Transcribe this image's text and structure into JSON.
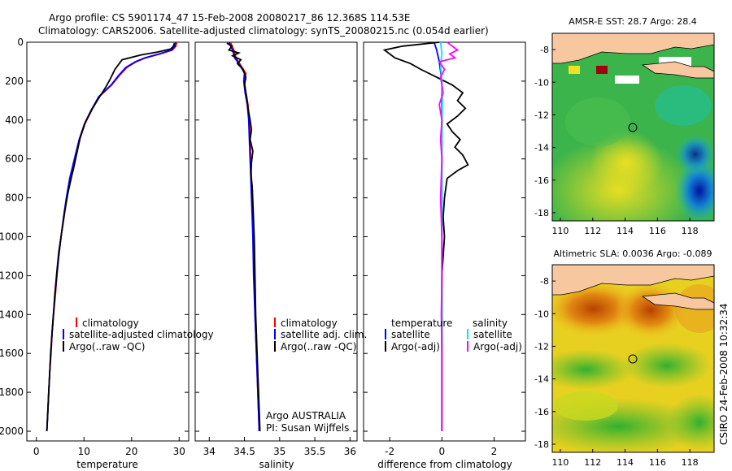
{
  "header": {
    "title_line1": "Argo profile: CS 5901174_47 15-Feb-2008 20080217_86 12.368S 114.53E",
    "title_line2": "Climatology: CARS2006. Satellite-adjusted climatology: synTS_20080215.nc (0.054d earlier)"
  },
  "credit": "CSIRO 24-Feb-2008 10:32:34",
  "colors": {
    "climatology": "#ff0000",
    "satellite": "#0000ff",
    "argo": "#000000",
    "salinity_satellite": "#00e5ff",
    "salinity_argo": "#ff00ff",
    "land": "#f7c7a0"
  },
  "chart_data": [
    {
      "id": "temperature",
      "type": "line",
      "xlabel": "temperature",
      "xlim": [
        -2,
        32
      ],
      "xticks": [
        0,
        10,
        20,
        30
      ],
      "ylim": [
        0,
        2050
      ],
      "yticks": [
        0,
        200,
        400,
        600,
        800,
        1000,
        1200,
        1400,
        1600,
        1800,
        2000
      ],
      "legend": [
        "climatology",
        "satellite-adjusted climatology",
        "Argo(..raw -QC)"
      ],
      "series": [
        {
          "name": "climatology",
          "color": "#ff0000",
          "points": [
            [
              29.5,
              0
            ],
            [
              29.3,
              20
            ],
            [
              28.6,
              40
            ],
            [
              26,
              60
            ],
            [
              23,
              80
            ],
            [
              21,
              100
            ],
            [
              19,
              130
            ],
            [
              17.5,
              170
            ],
            [
              15.8,
              220
            ],
            [
              13.2,
              280
            ],
            [
              11.6,
              350
            ],
            [
              10.2,
              420
            ],
            [
              9.1,
              500
            ],
            [
              8.1,
              600
            ],
            [
              7.1,
              700
            ],
            [
              6.4,
              800
            ],
            [
              5.8,
              900
            ],
            [
              5.2,
              1000
            ],
            [
              4.7,
              1100
            ],
            [
              4.3,
              1200
            ],
            [
              4.0,
              1300
            ],
            [
              3.6,
              1400
            ],
            [
              3.3,
              1500
            ],
            [
              3.1,
              1600
            ],
            [
              2.8,
              1700
            ],
            [
              2.6,
              1800
            ],
            [
              2.4,
              1900
            ],
            [
              2.2,
              2000
            ]
          ]
        },
        {
          "name": "satellite-adjusted climatology",
          "color": "#0000ff",
          "points": [
            [
              29.2,
              0
            ],
            [
              29.1,
              20
            ],
            [
              28.4,
              40
            ],
            [
              25.8,
              60
            ],
            [
              22.8,
              80
            ],
            [
              20.8,
              100
            ],
            [
              18.8,
              130
            ],
            [
              17.3,
              170
            ],
            [
              15.7,
              220
            ],
            [
              13.1,
              280
            ],
            [
              11.5,
              350
            ],
            [
              10.1,
              420
            ],
            [
              9.0,
              500
            ],
            [
              8.0,
              600
            ],
            [
              7.0,
              700
            ],
            [
              6.3,
              800
            ],
            [
              5.7,
              900
            ],
            [
              5.2,
              1000
            ],
            [
              4.7,
              1100
            ],
            [
              4.3,
              1200
            ],
            [
              3.9,
              1300
            ],
            [
              3.6,
              1400
            ],
            [
              3.3,
              1500
            ],
            [
              3.0,
              1600
            ],
            [
              2.8,
              1700
            ],
            [
              2.6,
              1800
            ],
            [
              2.4,
              1900
            ],
            [
              2.2,
              2000
            ]
          ]
        },
        {
          "name": "Argo(..raw -QC)",
          "color": "#000000",
          "points": [
            [
              29.0,
              5
            ],
            [
              28.8,
              20
            ],
            [
              28.2,
              35
            ],
            [
              25.5,
              50
            ],
            [
              22,
              65
            ],
            [
              18,
              90
            ],
            [
              16.5,
              140
            ],
            [
              15.5,
              190
            ],
            [
              14.6,
              230
            ],
            [
              13.3,
              280
            ],
            [
              11.8,
              340
            ],
            [
              10.3,
              410
            ],
            [
              9.2,
              490
            ],
            [
              8.5,
              570
            ],
            [
              7.8,
              650
            ],
            [
              7.4,
              690
            ],
            [
              6.6,
              780
            ],
            [
              5.9,
              880
            ],
            [
              5.3,
              980
            ],
            [
              4.7,
              1080
            ],
            [
              4.3,
              1180
            ],
            [
              3.9,
              1290
            ],
            [
              3.6,
              1390
            ],
            [
              3.3,
              1490
            ],
            [
              3.0,
              1600
            ],
            [
              2.8,
              1700
            ],
            [
              2.6,
              1800
            ],
            [
              2.4,
              1900
            ],
            [
              2.2,
              2000
            ]
          ]
        }
      ]
    },
    {
      "id": "salinity",
      "type": "line",
      "xlabel": "salinity",
      "xlim": [
        33.8,
        36.1
      ],
      "xticks": [
        34,
        34.5,
        35,
        35.5,
        36
      ],
      "ylim": [
        0,
        2050
      ],
      "legend": [
        "climatology",
        "satellite adj. clim.",
        "Argo(..raw -QC)"
      ],
      "annotation": [
        "Argo AUSTRALIA",
        "PI: Susan Wijffels"
      ],
      "series": [
        {
          "name": "climatology",
          "color": "#ff0000",
          "points": [
            [
              34.3,
              0
            ],
            [
              34.35,
              40
            ],
            [
              34.38,
              80
            ],
            [
              34.45,
              120
            ],
            [
              34.52,
              160
            ],
            [
              34.5,
              200
            ],
            [
              34.52,
              260
            ],
            [
              34.55,
              320
            ],
            [
              34.57,
              400
            ],
            [
              34.58,
              500
            ],
            [
              34.59,
              600
            ],
            [
              34.6,
              700
            ],
            [
              34.61,
              800
            ],
            [
              34.62,
              900
            ],
            [
              34.63,
              1000
            ],
            [
              34.64,
              1200
            ],
            [
              34.65,
              1400
            ],
            [
              34.67,
              1600
            ],
            [
              34.69,
              1800
            ],
            [
              34.71,
              2000
            ]
          ]
        },
        {
          "name": "satellite adj. clim.",
          "color": "#0000ff",
          "points": [
            [
              34.28,
              0
            ],
            [
              34.33,
              40
            ],
            [
              34.36,
              80
            ],
            [
              34.44,
              120
            ],
            [
              34.5,
              160
            ],
            [
              34.49,
              200
            ],
            [
              34.51,
              260
            ],
            [
              34.54,
              320
            ],
            [
              34.56,
              400
            ],
            [
              34.57,
              500
            ],
            [
              34.58,
              600
            ],
            [
              34.59,
              700
            ],
            [
              34.6,
              800
            ],
            [
              34.61,
              900
            ],
            [
              34.62,
              1000
            ],
            [
              34.63,
              1200
            ],
            [
              34.65,
              1400
            ],
            [
              34.67,
              1600
            ],
            [
              34.69,
              1800
            ],
            [
              34.71,
              2000
            ]
          ]
        },
        {
          "name": "Argo(..raw -QC)",
          "color": "#000000",
          "points": [
            [
              34.25,
              5
            ],
            [
              34.32,
              20
            ],
            [
              34.28,
              40
            ],
            [
              34.42,
              55
            ],
            [
              34.33,
              70
            ],
            [
              34.45,
              90
            ],
            [
              34.4,
              110
            ],
            [
              34.48,
              140
            ],
            [
              34.52,
              180
            ],
            [
              34.5,
              220
            ],
            [
              34.53,
              280
            ],
            [
              34.55,
              340
            ],
            [
              34.58,
              400
            ],
            [
              34.6,
              450
            ],
            [
              34.58,
              500
            ],
            [
              34.62,
              560
            ],
            [
              34.6,
              620
            ],
            [
              34.59,
              680
            ],
            [
              34.61,
              740
            ],
            [
              34.62,
              820
            ],
            [
              34.63,
              920
            ],
            [
              34.64,
              1020
            ],
            [
              34.65,
              1200
            ],
            [
              34.66,
              1400
            ],
            [
              34.68,
              1600
            ],
            [
              34.7,
              1800
            ],
            [
              34.72,
              2000
            ]
          ]
        }
      ]
    },
    {
      "id": "difference",
      "type": "line",
      "xlabel": "difference from climatology",
      "xlim": [
        -3,
        3.2
      ],
      "xticks": [
        -2,
        0,
        2
      ],
      "ylim": [
        0,
        2050
      ],
      "legend_temperature_title": "temperature",
      "legend_salinity_title": "salinity",
      "legend": [
        "satellite",
        "Argo(-adj)",
        "satellite",
        "Argo(-adj)"
      ],
      "series": [
        {
          "name": "temperature satellite",
          "color": "#0000ff",
          "points": [
            [
              -0.3,
              0
            ],
            [
              -0.2,
              40
            ],
            [
              -0.1,
              100
            ],
            [
              0,
              200
            ],
            [
              0,
              400
            ],
            [
              0,
              800
            ],
            [
              0,
              1200
            ],
            [
              0,
              1600
            ],
            [
              0,
              2000
            ]
          ]
        },
        {
          "name": "temperature Argo(-adj)",
          "color": "#000000",
          "points": [
            [
              -0.1,
              0
            ],
            [
              -1.5,
              20
            ],
            [
              -2.2,
              40
            ],
            [
              -2.0,
              60
            ],
            [
              -1.8,
              80
            ],
            [
              -1.2,
              110
            ],
            [
              -0.8,
              140
            ],
            [
              -0.2,
              180
            ],
            [
              0.4,
              220
            ],
            [
              0.8,
              260
            ],
            [
              0.6,
              300
            ],
            [
              0.9,
              340
            ],
            [
              0.6,
              380
            ],
            [
              0.2,
              420
            ],
            [
              0.4,
              460
            ],
            [
              0.7,
              500
            ],
            [
              0.5,
              540
            ],
            [
              0.8,
              580
            ],
            [
              1.0,
              630
            ],
            [
              0.6,
              660
            ],
            [
              0.2,
              700
            ],
            [
              0.1,
              800
            ],
            [
              0.05,
              900
            ],
            [
              0.1,
              1000
            ],
            [
              0,
              1200
            ],
            [
              0,
              1400
            ],
            [
              0,
              1600
            ],
            [
              0,
              1800
            ],
            [
              0,
              2000
            ]
          ]
        },
        {
          "name": "salinity satellite",
          "color": "#00e5ff",
          "points": [
            [
              -0.05,
              0
            ],
            [
              0,
              60
            ],
            [
              -0.05,
              120
            ],
            [
              0,
              200
            ],
            [
              0.02,
              300
            ],
            [
              0,
              500
            ],
            [
              0,
              800
            ],
            [
              0,
              1200
            ],
            [
              0,
              1600
            ],
            [
              0,
              2000
            ]
          ]
        },
        {
          "name": "salinity Argo(-adj)",
          "color": "#ff00ff",
          "points": [
            [
              0.2,
              0
            ],
            [
              0.4,
              20
            ],
            [
              0.6,
              40
            ],
            [
              0.3,
              60
            ],
            [
              0.5,
              80
            ],
            [
              -0.1,
              100
            ],
            [
              0.1,
              140
            ],
            [
              -0.05,
              180
            ],
            [
              0.05,
              260
            ],
            [
              -0.1,
              320
            ],
            [
              0,
              400
            ],
            [
              -0.05,
              500
            ],
            [
              0,
              600
            ],
            [
              -0.05,
              800
            ],
            [
              0,
              1000
            ],
            [
              0,
              1200
            ],
            [
              -0.02,
              1400
            ],
            [
              0,
              1600
            ],
            [
              0,
              1800
            ],
            [
              0,
              2000
            ]
          ]
        }
      ]
    },
    {
      "id": "sst_map",
      "type": "heatmap",
      "title": "AMSR-E SST: 28.7  Argo: 28.4",
      "xlim": [
        109.5,
        119.5
      ],
      "ylim": [
        -18.5,
        -7
      ],
      "xticks": [
        110,
        112,
        114,
        116,
        118
      ],
      "yticks": [
        -8,
        -10,
        -12,
        -14,
        -16,
        -18
      ],
      "float_position": {
        "lon": 114.53,
        "lat": -12.368
      }
    },
    {
      "id": "sla_map",
      "type": "heatmap",
      "title": "Altimetric SLA: 0.0036  Argo: -0.089",
      "xlim": [
        109.5,
        119.5
      ],
      "ylim": [
        -18.5,
        -7
      ],
      "xticks": [
        110,
        112,
        114,
        116,
        118
      ],
      "yticks": [
        -8,
        -10,
        -12,
        -14,
        -16,
        -18
      ],
      "float_position": {
        "lon": 114.53,
        "lat": -12.368
      }
    }
  ]
}
